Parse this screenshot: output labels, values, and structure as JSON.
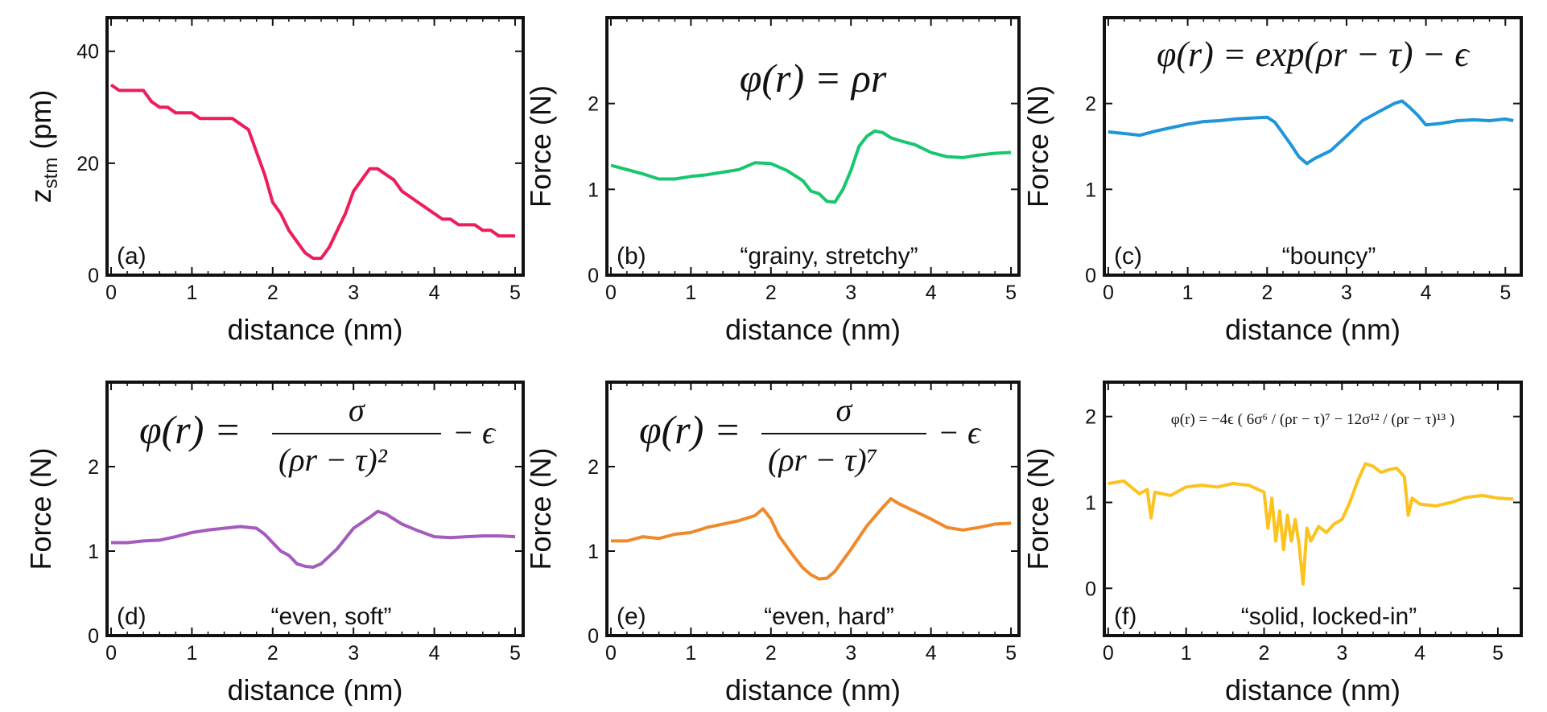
{
  "chart_data": [
    {
      "type": "line",
      "panel": "(a)",
      "xlabel": "distance (nm)",
      "ylabel": "z",
      "ylabel_sub": "stm",
      "ylabel_unit": " (pm)",
      "xlim": [
        -0.05,
        5.1
      ],
      "ylim": [
        0,
        46
      ],
      "xticks": [
        0,
        1,
        2,
        3,
        4,
        5
      ],
      "yticks": [
        0,
        20,
        40
      ],
      "color": "#ee1d5a",
      "formula": "",
      "caption": "",
      "x": [
        0,
        0.1,
        0.2,
        0.3,
        0.4,
        0.5,
        0.6,
        0.7,
        0.8,
        0.9,
        1.0,
        1.1,
        1.2,
        1.3,
        1.4,
        1.5,
        1.6,
        1.7,
        1.8,
        1.9,
        2.0,
        2.1,
        2.2,
        2.3,
        2.4,
        2.5,
        2.55,
        2.6,
        2.65,
        2.7,
        2.8,
        2.9,
        3.0,
        3.1,
        3.2,
        3.3,
        3.4,
        3.5,
        3.6,
        3.7,
        3.8,
        3.9,
        4.0,
        4.1,
        4.2,
        4.3,
        4.4,
        4.5,
        4.6,
        4.7,
        4.8,
        4.9,
        5.0
      ],
      "y": [
        34,
        33,
        33,
        33,
        33,
        31,
        30,
        30,
        29,
        29,
        29,
        28,
        28,
        28,
        28,
        28,
        27,
        26,
        22,
        18,
        13,
        11,
        8,
        6,
        4,
        3,
        3,
        3,
        4,
        5,
        8,
        11,
        15,
        17,
        19,
        19,
        18,
        17,
        15,
        14,
        13,
        12,
        11,
        10,
        10,
        9,
        9,
        9,
        8,
        8,
        7,
        7,
        7
      ]
    },
    {
      "type": "line",
      "panel": "(b)",
      "xlabel": "distance (nm)",
      "ylabel": "Force (N)",
      "xlim": [
        -0.05,
        5.1
      ],
      "ylim": [
        0,
        3
      ],
      "xticks": [
        0,
        1,
        2,
        3,
        4,
        5
      ],
      "yticks": [
        0,
        1,
        2
      ],
      "color": "#17c66d",
      "formula": "φ(r) = ρr",
      "caption": "“grainy, stretchy”",
      "x": [
        0,
        0.2,
        0.4,
        0.6,
        0.8,
        1.0,
        1.2,
        1.4,
        1.6,
        1.8,
        2.0,
        2.2,
        2.4,
        2.5,
        2.6,
        2.7,
        2.8,
        2.9,
        3.0,
        3.1,
        3.2,
        3.3,
        3.4,
        3.5,
        3.6,
        3.8,
        4.0,
        4.2,
        4.4,
        4.6,
        4.8,
        5.0
      ],
      "y": [
        1.28,
        1.23,
        1.18,
        1.12,
        1.12,
        1.15,
        1.17,
        1.2,
        1.23,
        1.31,
        1.3,
        1.22,
        1.1,
        0.98,
        0.95,
        0.86,
        0.85,
        1.0,
        1.22,
        1.5,
        1.62,
        1.68,
        1.66,
        1.6,
        1.57,
        1.52,
        1.43,
        1.38,
        1.37,
        1.4,
        1.42,
        1.43
      ]
    },
    {
      "type": "line",
      "panel": "(c)",
      "xlabel": "distance (nm)",
      "ylabel": "Force (N)",
      "xlim": [
        -0.05,
        5.2
      ],
      "ylim": [
        0,
        3
      ],
      "xticks": [
        0,
        1,
        2,
        3,
        4,
        5
      ],
      "yticks": [
        0,
        1,
        2
      ],
      "color": "#1f95da",
      "formula": "φ(r) = exp(ρr − τ) − ϵ",
      "caption": "“bouncy”",
      "x": [
        0,
        0.2,
        0.4,
        0.6,
        0.8,
        1.0,
        1.2,
        1.4,
        1.6,
        1.8,
        2.0,
        2.1,
        2.2,
        2.3,
        2.4,
        2.5,
        2.6,
        2.8,
        3.0,
        3.2,
        3.4,
        3.6,
        3.7,
        3.8,
        3.9,
        4.0,
        4.2,
        4.4,
        4.6,
        4.8,
        5.0,
        5.1
      ],
      "y": [
        1.67,
        1.65,
        1.63,
        1.68,
        1.72,
        1.76,
        1.79,
        1.8,
        1.82,
        1.83,
        1.84,
        1.78,
        1.65,
        1.52,
        1.38,
        1.3,
        1.36,
        1.45,
        1.62,
        1.8,
        1.9,
        2.0,
        2.03,
        1.95,
        1.86,
        1.75,
        1.77,
        1.8,
        1.81,
        1.8,
        1.82,
        1.8
      ]
    },
    {
      "type": "line",
      "panel": "(d)",
      "xlabel": "distance (nm)",
      "ylabel": "Force (N)",
      "xlim": [
        -0.05,
        5.1
      ],
      "ylim": [
        0,
        3
      ],
      "xticks": [
        0,
        1,
        2,
        3,
        4,
        5
      ],
      "yticks": [
        0,
        1,
        2
      ],
      "color": "#a45bbd",
      "formula": "φ(r) = σ / (ρr − τ)² − ϵ",
      "caption": "“even, soft”",
      "x": [
        0,
        0.2,
        0.4,
        0.6,
        0.8,
        1.0,
        1.2,
        1.4,
        1.6,
        1.8,
        1.9,
        2.0,
        2.1,
        2.2,
        2.3,
        2.4,
        2.5,
        2.6,
        2.8,
        3.0,
        3.2,
        3.3,
        3.4,
        3.6,
        3.8,
        4.0,
        4.2,
        4.4,
        4.6,
        4.8,
        5.0
      ],
      "y": [
        1.1,
        1.1,
        1.12,
        1.13,
        1.17,
        1.22,
        1.25,
        1.27,
        1.29,
        1.27,
        1.2,
        1.1,
        1.0,
        0.95,
        0.85,
        0.82,
        0.81,
        0.85,
        1.03,
        1.27,
        1.4,
        1.47,
        1.44,
        1.32,
        1.24,
        1.17,
        1.16,
        1.17,
        1.18,
        1.18,
        1.17
      ]
    },
    {
      "type": "line",
      "panel": "(e)",
      "xlabel": "distance (nm)",
      "ylabel": "Force (N)",
      "xlim": [
        -0.05,
        5.1
      ],
      "ylim": [
        0,
        3
      ],
      "xticks": [
        0,
        1,
        2,
        3,
        4,
        5
      ],
      "yticks": [
        0,
        1,
        2
      ],
      "color": "#f0892a",
      "formula": "φ(r) = σ / (ρr − τ)⁷ − ϵ",
      "caption": "“even, hard”",
      "x": [
        0,
        0.2,
        0.4,
        0.6,
        0.8,
        1.0,
        1.2,
        1.4,
        1.6,
        1.8,
        1.9,
        2.0,
        2.1,
        2.2,
        2.3,
        2.4,
        2.5,
        2.6,
        2.7,
        2.8,
        3.0,
        3.2,
        3.4,
        3.5,
        3.6,
        3.8,
        4.0,
        4.2,
        4.4,
        4.6,
        4.8,
        5.0
      ],
      "y": [
        1.12,
        1.12,
        1.17,
        1.15,
        1.2,
        1.22,
        1.28,
        1.32,
        1.36,
        1.42,
        1.5,
        1.38,
        1.18,
        1.05,
        0.92,
        0.8,
        0.72,
        0.67,
        0.68,
        0.76,
        1.02,
        1.3,
        1.52,
        1.62,
        1.56,
        1.47,
        1.38,
        1.28,
        1.25,
        1.28,
        1.32,
        1.33
      ]
    },
    {
      "type": "line",
      "panel": "(f)",
      "xlabel": "distance (nm)",
      "ylabel": "Force (N)",
      "xlim": [
        -0.05,
        5.3
      ],
      "ylim": [
        -0.55,
        2.4
      ],
      "xticks": [
        0,
        1,
        2,
        3,
        4,
        5
      ],
      "yticks": [
        0,
        1,
        2
      ],
      "color": "#fcc21e",
      "formula": "φ(r) = −4ϵ ( 6σ⁶ / (ρr − τ)⁷ − 12σ¹² / (ρr − τ)¹³ )",
      "caption": "“solid, locked-in”",
      "x": [
        0,
        0.2,
        0.4,
        0.5,
        0.55,
        0.6,
        0.8,
        1.0,
        1.2,
        1.4,
        1.6,
        1.8,
        2.0,
        2.05,
        2.1,
        2.15,
        2.2,
        2.25,
        2.3,
        2.35,
        2.4,
        2.45,
        2.5,
        2.55,
        2.6,
        2.7,
        2.8,
        2.9,
        3.0,
        3.1,
        3.2,
        3.3,
        3.4,
        3.5,
        3.6,
        3.7,
        3.8,
        3.85,
        3.9,
        4.0,
        4.2,
        4.4,
        4.6,
        4.8,
        5.0,
        5.2
      ],
      "y": [
        1.22,
        1.25,
        1.1,
        1.15,
        0.82,
        1.12,
        1.08,
        1.18,
        1.2,
        1.18,
        1.22,
        1.2,
        1.12,
        0.7,
        1.05,
        0.55,
        0.9,
        0.45,
        0.85,
        0.55,
        0.8,
        0.5,
        0.05,
        0.7,
        0.55,
        0.72,
        0.65,
        0.75,
        0.8,
        1.0,
        1.25,
        1.45,
        1.42,
        1.35,
        1.38,
        1.4,
        1.3,
        0.85,
        1.05,
        0.98,
        0.96,
        1.0,
        1.06,
        1.08,
        1.05,
        1.04
      ]
    }
  ]
}
